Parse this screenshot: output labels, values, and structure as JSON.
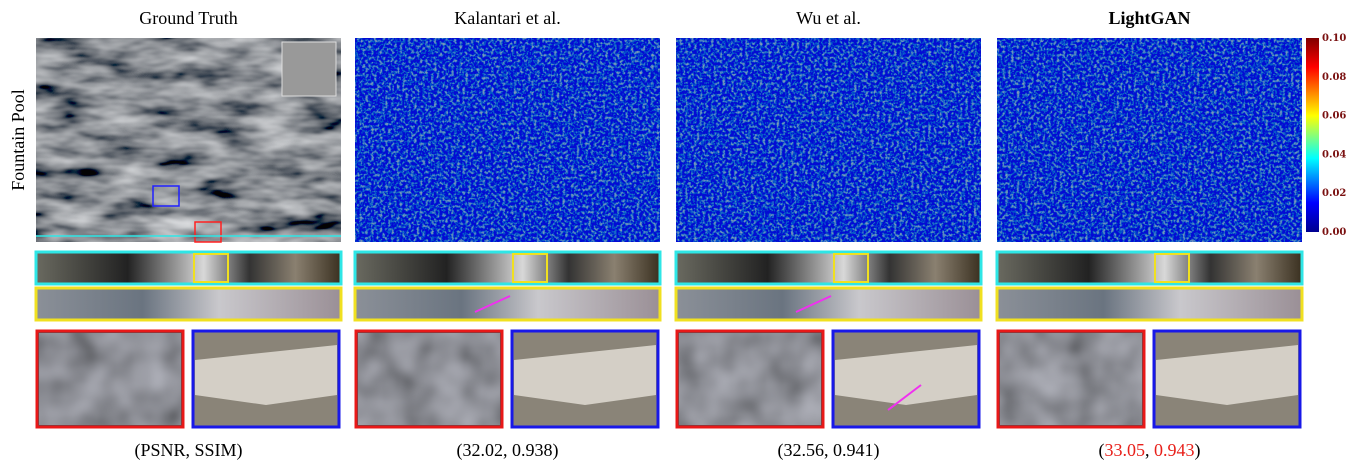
{
  "row_label": "Fountain Pool",
  "columns": [
    {
      "title": "Ground Truth",
      "caption": [
        "(PSNR, SSIM)"
      ]
    },
    {
      "title": "Kalantari et al.",
      "caption": [
        "(",
        "32.02",
        ", ",
        "0.938",
        ")"
      ]
    },
    {
      "title": "Wu et al.",
      "caption": [
        "(",
        "32.56",
        ", ",
        "0.941",
        ")"
      ]
    },
    {
      "title": "LightGAN",
      "caption": [
        "(",
        "33.05",
        ", ",
        "0.943",
        ")"
      ]
    }
  ],
  "colorbar": {
    "ticks": [
      "0.10",
      "0.08",
      "0.06",
      "0.04",
      "0.02",
      "0.00"
    ]
  }
}
